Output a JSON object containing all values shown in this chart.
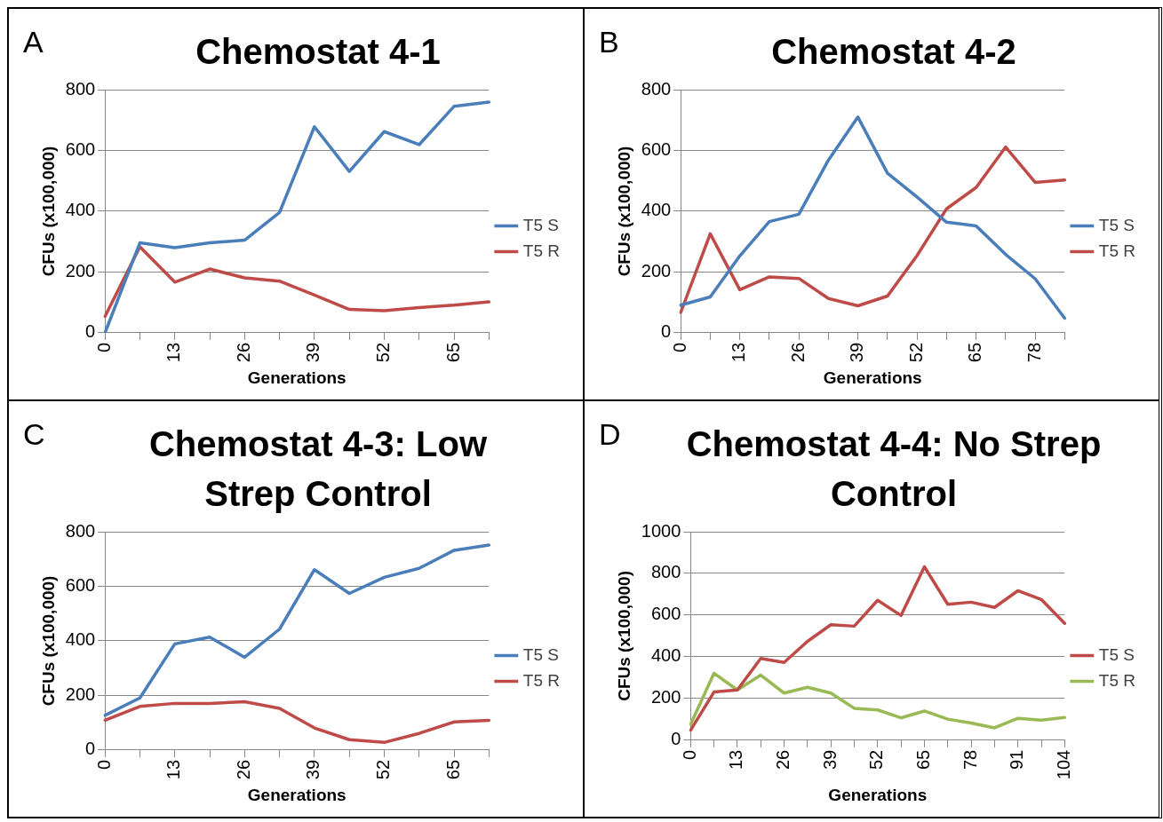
{
  "chart_data": [
    {
      "type": "line",
      "title": "Chemostat 4-1",
      "annotations": [
        "A"
      ],
      "xlabel": "Generations",
      "ylabel": "CFUs (x100,000)",
      "categories": [
        "0",
        null,
        "13",
        null,
        "26",
        null,
        "39",
        null,
        "52",
        null,
        "65",
        null
      ],
      "ylim": [
        0,
        800
      ],
      "yticks": [
        0,
        200,
        400,
        600,
        800
      ],
      "grid": "y",
      "legend": "right",
      "marker": "none",
      "series": [
        {
          "name": "T5 S",
          "color": "#4a7ebb",
          "values": [
            0,
            296,
            280,
            296,
            305,
            396,
            678,
            531,
            662,
            619,
            745,
            759
          ]
        },
        {
          "name": "T5 R",
          "color": "#be4b48",
          "values": [
            54,
            283,
            167,
            210,
            181,
            170,
            124,
            77,
            73,
            83,
            91,
            102
          ]
        }
      ]
    },
    {
      "type": "line",
      "title": "Chemostat 4-2",
      "annotations": [
        "B"
      ],
      "xlabel": "Generations",
      "ylabel": "CFUs (x100,000)",
      "categories": [
        "0",
        null,
        "13",
        null,
        "26",
        null,
        "39",
        null,
        "52",
        null,
        "65",
        null,
        "78",
        null
      ],
      "ylim": [
        0,
        800
      ],
      "yticks": [
        0,
        200,
        400,
        600,
        800
      ],
      "grid": "y",
      "legend": "right",
      "marker": "none",
      "series": [
        {
          "name": "T5 S",
          "color": "#4a7ebb",
          "values": [
            91,
            118,
            253,
            366,
            390,
            568,
            710,
            525,
            447,
            364,
            352,
            258,
            178,
            48
          ]
        },
        {
          "name": "T5 R",
          "color": "#be4b48",
          "values": [
            67,
            326,
            142,
            184,
            179,
            113,
            89,
            121,
            254,
            408,
            478,
            611,
            495,
            503
          ]
        }
      ]
    },
    {
      "type": "line",
      "title": "Chemostat 4-3: Low Strep Control",
      "annotations": [
        "C"
      ],
      "xlabel": "Generations",
      "ylabel": "CFUs (x100,000)",
      "categories": [
        "0",
        null,
        "13",
        null,
        "26",
        null,
        "39",
        null,
        "52",
        null,
        "65",
        null
      ],
      "ylim": [
        0,
        800
      ],
      "yticks": [
        0,
        200,
        400,
        600,
        800
      ],
      "grid": "y",
      "legend": "right",
      "marker": "none",
      "series": [
        {
          "name": "T5 S",
          "color": "#4a7ebb",
          "values": [
            127,
            191,
            389,
            414,
            340,
            443,
            661,
            574,
            633,
            666,
            732,
            751
          ]
        },
        {
          "name": "T5 R",
          "color": "#be4b48",
          "values": [
            109,
            160,
            171,
            171,
            177,
            153,
            81,
            38,
            28,
            61,
            103,
            109
          ]
        }
      ]
    },
    {
      "type": "line",
      "title": "Chemostat 4-4: No Strep Control",
      "annotations": [
        "D"
      ],
      "xlabel": "Generations",
      "ylabel": "CFUs (x100,000)",
      "categories": [
        "0",
        null,
        "13",
        null,
        "26",
        null,
        "39",
        null,
        "52",
        null,
        "65",
        null,
        "78",
        null,
        "91",
        null,
        "104"
      ],
      "ylim": [
        0,
        1000
      ],
      "yticks": [
        0,
        200,
        400,
        600,
        800,
        1000
      ],
      "grid": "y",
      "legend": "right",
      "marker": "none",
      "series": [
        {
          "name": "T5 S",
          "color": "#be4b48",
          "values": [
            48,
            231,
            241,
            392,
            373,
            474,
            554,
            547,
            671,
            598,
            832,
            652,
            662,
            637,
            717,
            675,
            560
          ]
        },
        {
          "name": "T5 R",
          "color": "#98b954",
          "values": [
            76,
            321,
            241,
            312,
            226,
            254,
            226,
            153,
            145,
            107,
            140,
            101,
            82,
            59,
            105,
            96,
            109
          ]
        }
      ]
    }
  ]
}
